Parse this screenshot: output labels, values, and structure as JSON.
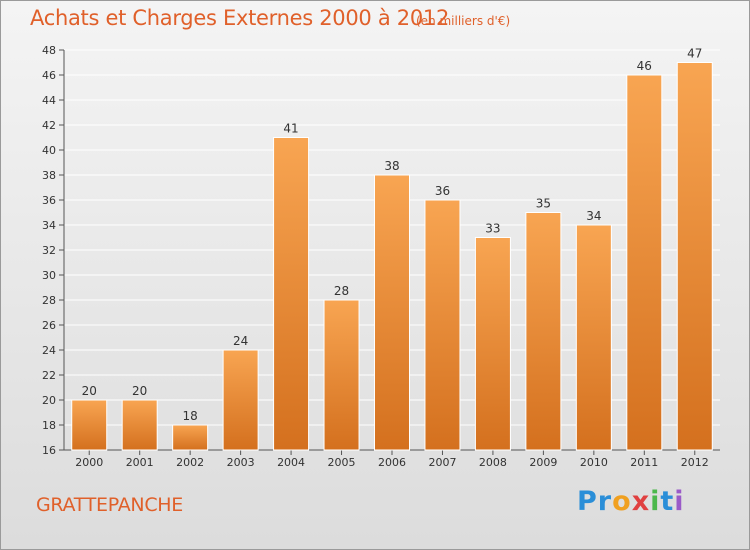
{
  "header": {
    "title": "Achats et Charges Externes 2000 à 2012",
    "unit": "(en milliers d'€)"
  },
  "footer": {
    "commune": "GRATTEPANCHE",
    "brand_letters": [
      {
        "char": "P",
        "color": "#2a8ed8"
      },
      {
        "char": "r",
        "color": "#2a8ed8"
      },
      {
        "char": "o",
        "color": "#f0a020"
      },
      {
        "char": "x",
        "color": "#e04040"
      },
      {
        "char": "i",
        "color": "#4cb84c"
      },
      {
        "char": "t",
        "color": "#2a8ed8"
      },
      {
        "char": "i",
        "color": "#9a5ac8"
      }
    ]
  },
  "chart_data": {
    "type": "bar",
    "title": "Achats et Charges Externes 2000 à 2012",
    "subtitle": "(en milliers d'€)",
    "xlabel": "",
    "ylabel": "",
    "categories": [
      "2000",
      "2001",
      "2002",
      "2003",
      "2004",
      "2005",
      "2006",
      "2007",
      "2008",
      "2009",
      "2010",
      "2011",
      "2012"
    ],
    "values": [
      20,
      20,
      18,
      24,
      41,
      28,
      38,
      36,
      33,
      35,
      34,
      46,
      47
    ],
    "ylim": [
      16,
      48
    ],
    "yticks": [
      16,
      18,
      20,
      22,
      24,
      26,
      28,
      30,
      32,
      34,
      36,
      38,
      40,
      42,
      44,
      46,
      48
    ],
    "grid": true,
    "bar_color": "#f08a30"
  }
}
